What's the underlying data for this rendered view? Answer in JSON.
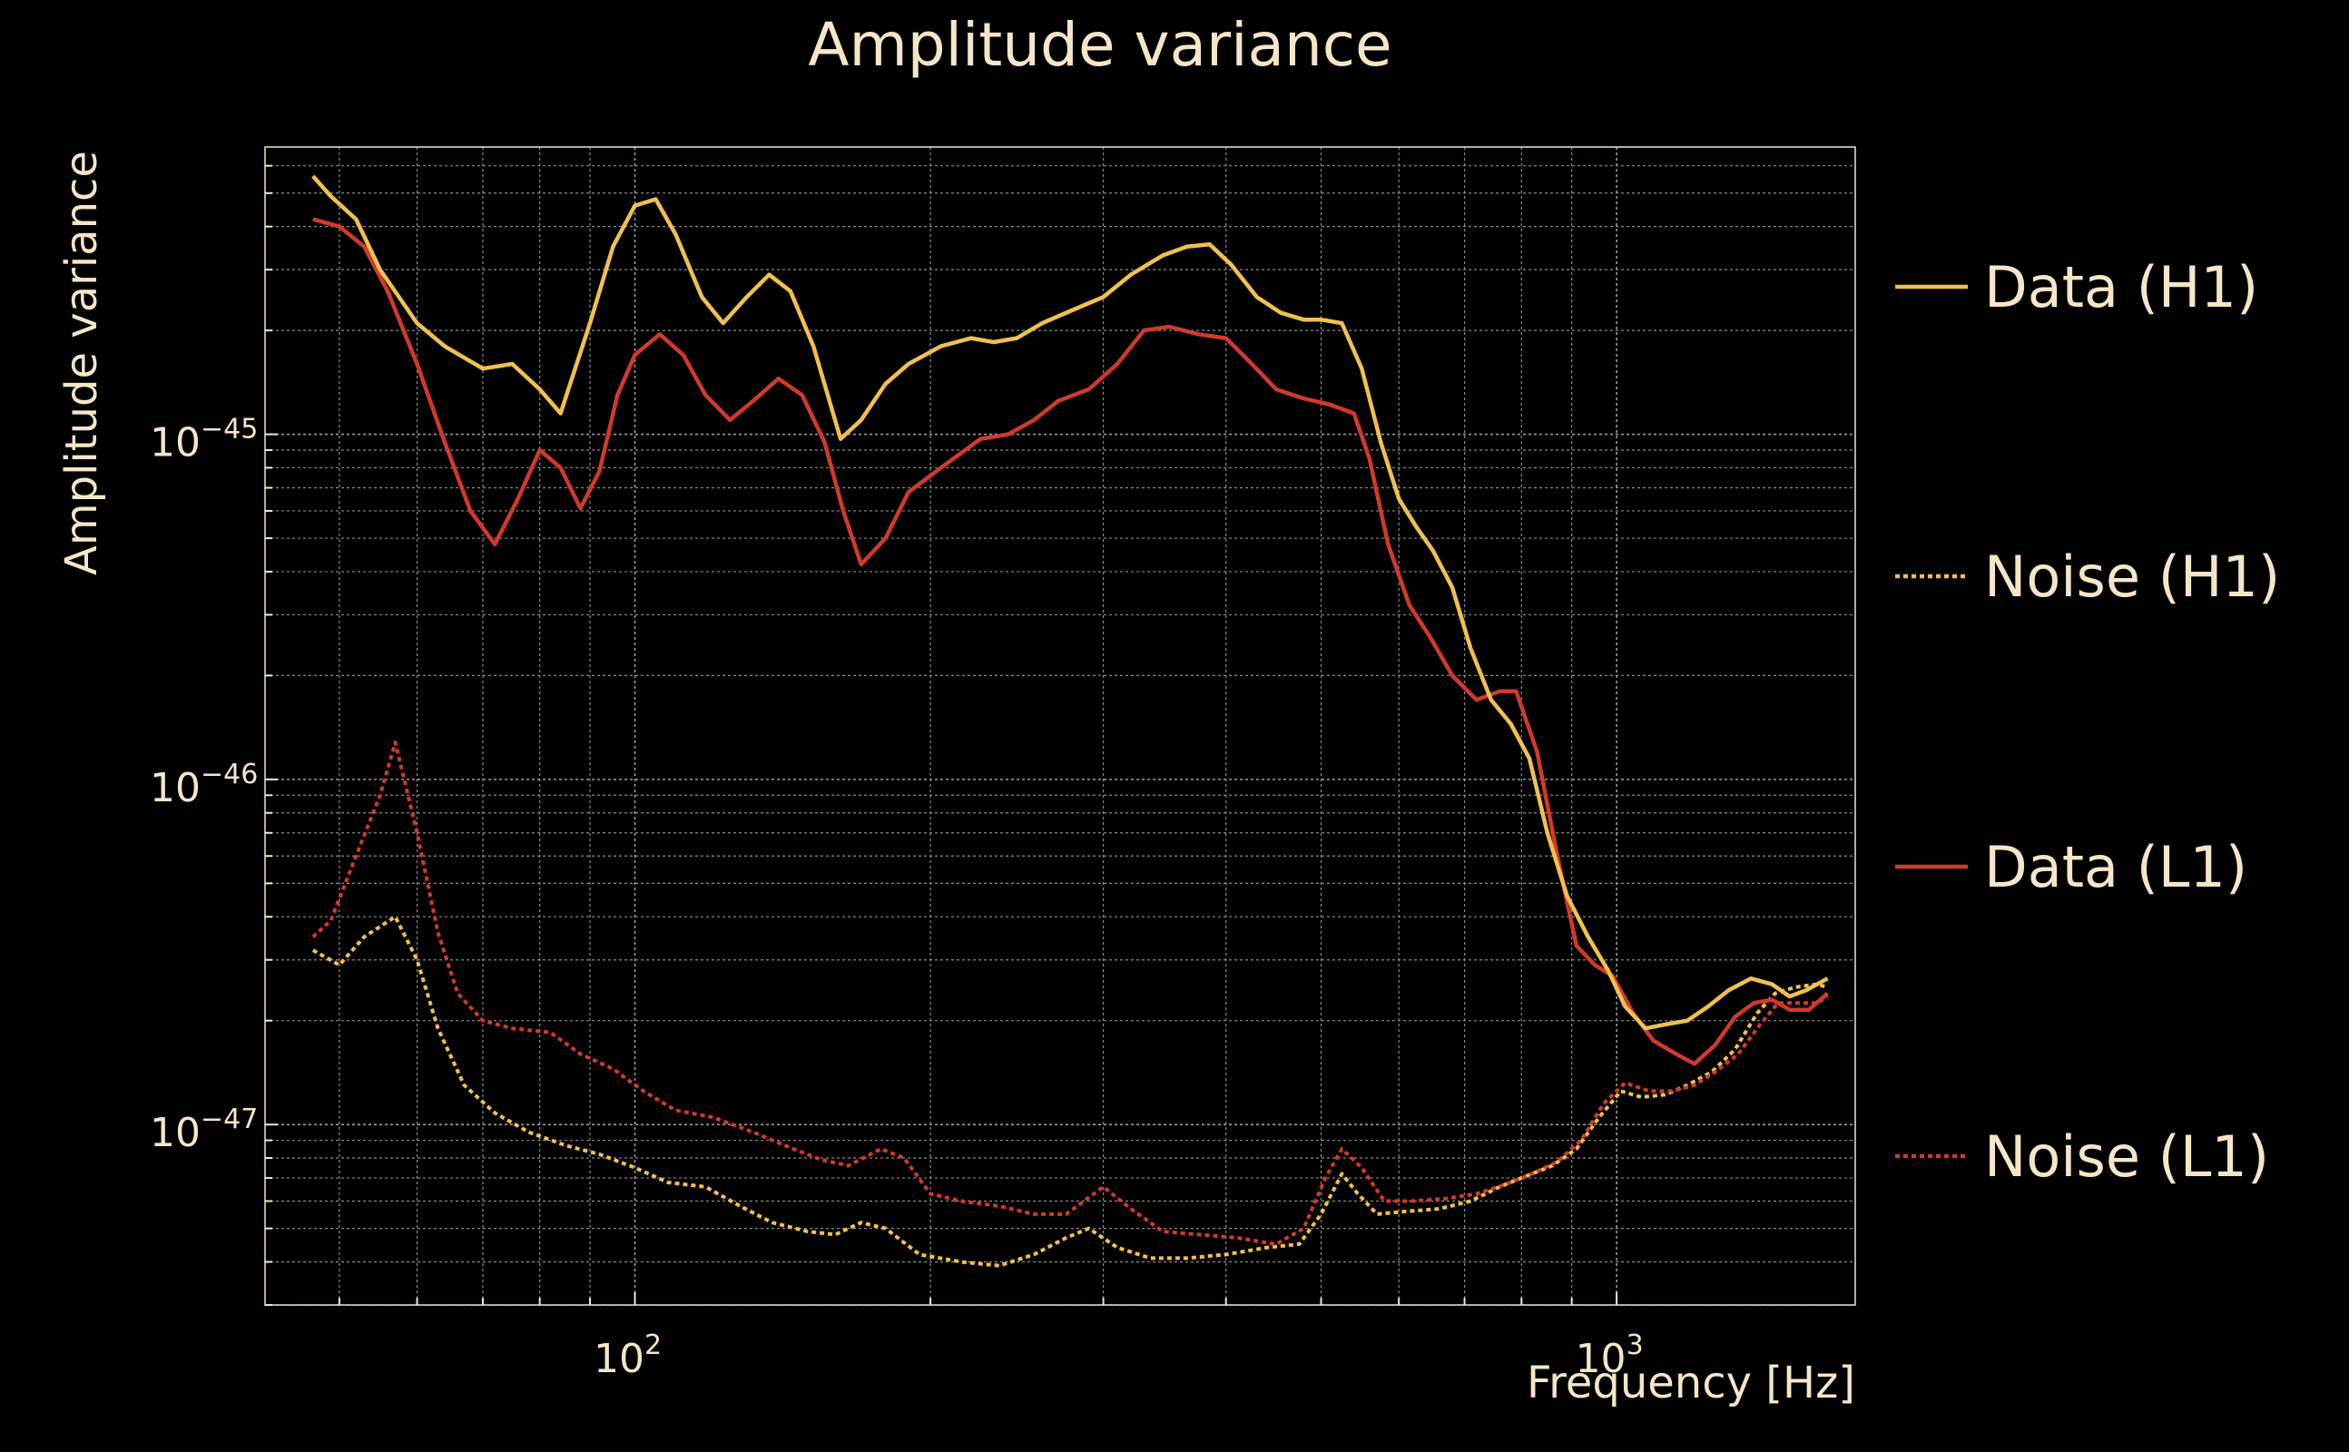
{
  "chart_data": {
    "type": "line",
    "title": "Amplitude variance",
    "xlabel": "Frequency [Hz]",
    "ylabel": "Amplitude variance",
    "xscale": "log",
    "yscale": "log",
    "xlim": [
      42,
      1750
    ],
    "ylim": [
      3e-48,
      6.8e-45
    ],
    "x_ticks": [
      {
        "base": "10",
        "exp": "2",
        "value": 100
      },
      {
        "base": "10",
        "exp": "3",
        "value": 1000
      }
    ],
    "y_ticks": [
      {
        "base": "10",
        "exp": "−47",
        "value": 1e-47
      },
      {
        "base": "10",
        "exp": "−46",
        "value": 1e-46
      },
      {
        "base": "10",
        "exp": "−45",
        "value": 1e-45
      }
    ],
    "grid": true,
    "legend_position": "right",
    "series": [
      {
        "name": "Data (H1)",
        "color": "#f0c050",
        "style": "solid",
        "points": [
          [
            47,
            5.6e-45
          ],
          [
            49,
            4.9e-45
          ],
          [
            52,
            4.2e-45
          ],
          [
            55,
            3e-45
          ],
          [
            60,
            2.1e-45
          ],
          [
            64,
            1.8e-45
          ],
          [
            70,
            1.55e-45
          ],
          [
            75,
            1.6e-45
          ],
          [
            80,
            1.35e-45
          ],
          [
            84,
            1.15e-45
          ],
          [
            90,
            2.1e-45
          ],
          [
            95,
            3.5e-45
          ],
          [
            100,
            4.6e-45
          ],
          [
            105,
            4.8e-45
          ],
          [
            110,
            3.8e-45
          ],
          [
            117,
            2.5e-45
          ],
          [
            123,
            2.1e-45
          ],
          [
            130,
            2.5e-45
          ],
          [
            137,
            2.9e-45
          ],
          [
            144,
            2.6e-45
          ],
          [
            152,
            1.8e-45
          ],
          [
            162,
            9.7e-46
          ],
          [
            170,
            1.1e-45
          ],
          [
            180,
            1.4e-45
          ],
          [
            190,
            1.6e-45
          ],
          [
            205,
            1.8e-45
          ],
          [
            220,
            1.9e-45
          ],
          [
            232,
            1.85e-45
          ],
          [
            245,
            1.9e-45
          ],
          [
            260,
            2.1e-45
          ],
          [
            280,
            2.3e-45
          ],
          [
            300,
            2.5e-45
          ],
          [
            320,
            2.9e-45
          ],
          [
            345,
            3.3e-45
          ],
          [
            365,
            3.5e-45
          ],
          [
            385,
            3.55e-45
          ],
          [
            405,
            3.1e-45
          ],
          [
            430,
            2.5e-45
          ],
          [
            455,
            2.25e-45
          ],
          [
            480,
            2.15e-45
          ],
          [
            500,
            2.15e-45
          ],
          [
            525,
            2.1e-45
          ],
          [
            550,
            1.55e-45
          ],
          [
            575,
            9.5e-46
          ],
          [
            600,
            6.5e-46
          ],
          [
            625,
            5.4e-46
          ],
          [
            650,
            4.6e-46
          ],
          [
            680,
            3.6e-46
          ],
          [
            710,
            2.4e-46
          ],
          [
            745,
            1.7e-46
          ],
          [
            780,
            1.45e-46
          ],
          [
            815,
            1.15e-46
          ],
          [
            850,
            7e-47
          ],
          [
            890,
            4.6e-47
          ],
          [
            935,
            3.5e-47
          ],
          [
            980,
            2.8e-47
          ],
          [
            1020,
            2.2e-47
          ],
          [
            1070,
            1.9e-47
          ],
          [
            1120,
            1.95e-47
          ],
          [
            1180,
            2e-47
          ],
          [
            1240,
            2.2e-47
          ],
          [
            1300,
            2.45e-47
          ],
          [
            1370,
            2.65e-47
          ],
          [
            1440,
            2.55e-47
          ],
          [
            1500,
            2.35e-47
          ],
          [
            1560,
            2.45e-47
          ],
          [
            1640,
            2.65e-47
          ]
        ]
      },
      {
        "name": "Noise (H1)",
        "color": "#f0c050",
        "style": "dotted",
        "points": [
          [
            47,
            3.2e-47
          ],
          [
            50,
            2.9e-47
          ],
          [
            53,
            3.5e-47
          ],
          [
            57,
            4e-47
          ],
          [
            60,
            3e-47
          ],
          [
            63,
            1.9e-47
          ],
          [
            67,
            1.3e-47
          ],
          [
            72,
            1.08e-47
          ],
          [
            78,
            9.5e-48
          ],
          [
            85,
            8.7e-48
          ],
          [
            92,
            8.2e-48
          ],
          [
            100,
            7.5e-48
          ],
          [
            108,
            6.8e-48
          ],
          [
            118,
            6.6e-48
          ],
          [
            128,
            5.8e-48
          ],
          [
            138,
            5.2e-48
          ],
          [
            150,
            4.9e-48
          ],
          [
            160,
            4.8e-48
          ],
          [
            170,
            5.2e-48
          ],
          [
            180,
            5e-48
          ],
          [
            195,
            4.2e-48
          ],
          [
            215,
            4e-48
          ],
          [
            235,
            3.9e-48
          ],
          [
            255,
            4.2e-48
          ],
          [
            275,
            4.7e-48
          ],
          [
            290,
            5e-48
          ],
          [
            310,
            4.4e-48
          ],
          [
            335,
            4.1e-48
          ],
          [
            365,
            4.1e-48
          ],
          [
            400,
            4.2e-48
          ],
          [
            440,
            4.4e-48
          ],
          [
            475,
            4.5e-48
          ],
          [
            500,
            5.5e-48
          ],
          [
            525,
            7.2e-48
          ],
          [
            545,
            6.3e-48
          ],
          [
            570,
            5.5e-48
          ],
          [
            610,
            5.6e-48
          ],
          [
            660,
            5.7e-48
          ],
          [
            710,
            6e-48
          ],
          [
            760,
            6.6e-48
          ],
          [
            810,
            7.1e-48
          ],
          [
            860,
            7.6e-48
          ],
          [
            910,
            8.5e-48
          ],
          [
            960,
            1.05e-47
          ],
          [
            1010,
            1.25e-47
          ],
          [
            1060,
            1.2e-47
          ],
          [
            1120,
            1.22e-47
          ],
          [
            1180,
            1.3e-47
          ],
          [
            1250,
            1.42e-47
          ],
          [
            1320,
            1.65e-47
          ],
          [
            1390,
            2.1e-47
          ],
          [
            1450,
            2.4e-47
          ],
          [
            1520,
            2.5e-47
          ],
          [
            1600,
            2.55e-47
          ],
          [
            1640,
            2.5e-47
          ]
        ]
      },
      {
        "name": "Data (L1)",
        "color": "#d03a2a",
        "style": "solid",
        "points": [
          [
            47,
            4.2e-45
          ],
          [
            50,
            4e-45
          ],
          [
            53,
            3.5e-45
          ],
          [
            56,
            2.6e-45
          ],
          [
            60,
            1.6e-45
          ],
          [
            64,
            9.5e-46
          ],
          [
            68,
            6e-46
          ],
          [
            72,
            4.8e-46
          ],
          [
            76,
            6.5e-46
          ],
          [
            80,
            9e-46
          ],
          [
            84,
            8e-46
          ],
          [
            88,
            6.1e-46
          ],
          [
            92,
            7.8e-46
          ],
          [
            96,
            1.3e-45
          ],
          [
            100,
            1.7e-45
          ],
          [
            106,
            1.95e-45
          ],
          [
            112,
            1.7e-45
          ],
          [
            118,
            1.3e-45
          ],
          [
            125,
            1.1e-45
          ],
          [
            132,
            1.25e-45
          ],
          [
            140,
            1.45e-45
          ],
          [
            148,
            1.3e-45
          ],
          [
            156,
            9.5e-46
          ],
          [
            163,
            6e-46
          ],
          [
            170,
            4.2e-46
          ],
          [
            180,
            5e-46
          ],
          [
            190,
            6.8e-46
          ],
          [
            205,
            8e-46
          ],
          [
            225,
            9.7e-46
          ],
          [
            240,
            1e-45
          ],
          [
            255,
            1.1e-45
          ],
          [
            270,
            1.25e-45
          ],
          [
            290,
            1.35e-45
          ],
          [
            310,
            1.6e-45
          ],
          [
            330,
            2e-45
          ],
          [
            350,
            2.05e-45
          ],
          [
            375,
            1.95e-45
          ],
          [
            400,
            1.9e-45
          ],
          [
            425,
            1.6e-45
          ],
          [
            450,
            1.35e-45
          ],
          [
            480,
            1.27e-45
          ],
          [
            510,
            1.22e-45
          ],
          [
            540,
            1.15e-45
          ],
          [
            560,
            8.5e-46
          ],
          [
            585,
            4.8e-46
          ],
          [
            615,
            3.2e-46
          ],
          [
            645,
            2.6e-46
          ],
          [
            680,
            2e-46
          ],
          [
            720,
            1.7e-46
          ],
          [
            760,
            1.8e-46
          ],
          [
            790,
            1.8e-46
          ],
          [
            830,
            1.2e-46
          ],
          [
            870,
            6e-47
          ],
          [
            910,
            3.3e-47
          ],
          [
            950,
            2.9e-47
          ],
          [
            990,
            2.7e-47
          ],
          [
            1040,
            2.1e-47
          ],
          [
            1090,
            1.75e-47
          ],
          [
            1150,
            1.6e-47
          ],
          [
            1200,
            1.5e-47
          ],
          [
            1260,
            1.7e-47
          ],
          [
            1320,
            2.05e-47
          ],
          [
            1380,
            2.25e-47
          ],
          [
            1440,
            2.3e-47
          ],
          [
            1500,
            2.15e-47
          ],
          [
            1570,
            2.15e-47
          ],
          [
            1640,
            2.4e-47
          ]
        ]
      },
      {
        "name": "Noise (L1)",
        "color": "#d03a2a",
        "style": "dotted",
        "points": [
          [
            47,
            3.5e-47
          ],
          [
            49,
            3.9e-47
          ],
          [
            52,
            6e-47
          ],
          [
            55,
            9e-47
          ],
          [
            57,
            1.28e-46
          ],
          [
            60,
            7e-47
          ],
          [
            63,
            3.6e-47
          ],
          [
            66,
            2.4e-47
          ],
          [
            70,
            2e-47
          ],
          [
            75,
            1.9e-47
          ],
          [
            82,
            1.85e-47
          ],
          [
            88,
            1.6e-47
          ],
          [
            95,
            1.45e-47
          ],
          [
            102,
            1.25e-47
          ],
          [
            110,
            1.1e-47
          ],
          [
            120,
            1.05e-47
          ],
          [
            132,
            9.5e-48
          ],
          [
            145,
            8.5e-48
          ],
          [
            155,
            7.9e-48
          ],
          [
            165,
            7.6e-48
          ],
          [
            178,
            8.5e-48
          ],
          [
            188,
            8e-48
          ],
          [
            200,
            6.3e-48
          ],
          [
            215,
            6e-48
          ],
          [
            235,
            5.8e-48
          ],
          [
            255,
            5.5e-48
          ],
          [
            275,
            5.5e-48
          ],
          [
            300,
            6.6e-48
          ],
          [
            320,
            5.7e-48
          ],
          [
            345,
            4.9e-48
          ],
          [
            375,
            4.8e-48
          ],
          [
            410,
            4.7e-48
          ],
          [
            450,
            4.5e-48
          ],
          [
            480,
            5e-48
          ],
          [
            505,
            7e-48
          ],
          [
            525,
            8.5e-48
          ],
          [
            550,
            7.5e-48
          ],
          [
            580,
            6e-48
          ],
          [
            620,
            6e-48
          ],
          [
            670,
            6.1e-48
          ],
          [
            720,
            6.3e-48
          ],
          [
            770,
            6.7e-48
          ],
          [
            820,
            7.2e-48
          ],
          [
            870,
            7.8e-48
          ],
          [
            920,
            9e-48
          ],
          [
            970,
            1.15e-47
          ],
          [
            1020,
            1.32e-47
          ],
          [
            1080,
            1.25e-47
          ],
          [
            1140,
            1.25e-47
          ],
          [
            1200,
            1.3e-47
          ],
          [
            1260,
            1.42e-47
          ],
          [
            1330,
            1.6e-47
          ],
          [
            1400,
            1.95e-47
          ],
          [
            1460,
            2.25e-47
          ],
          [
            1530,
            2.25e-47
          ],
          [
            1600,
            2.25e-47
          ],
          [
            1640,
            2.35e-47
          ]
        ]
      }
    ]
  }
}
